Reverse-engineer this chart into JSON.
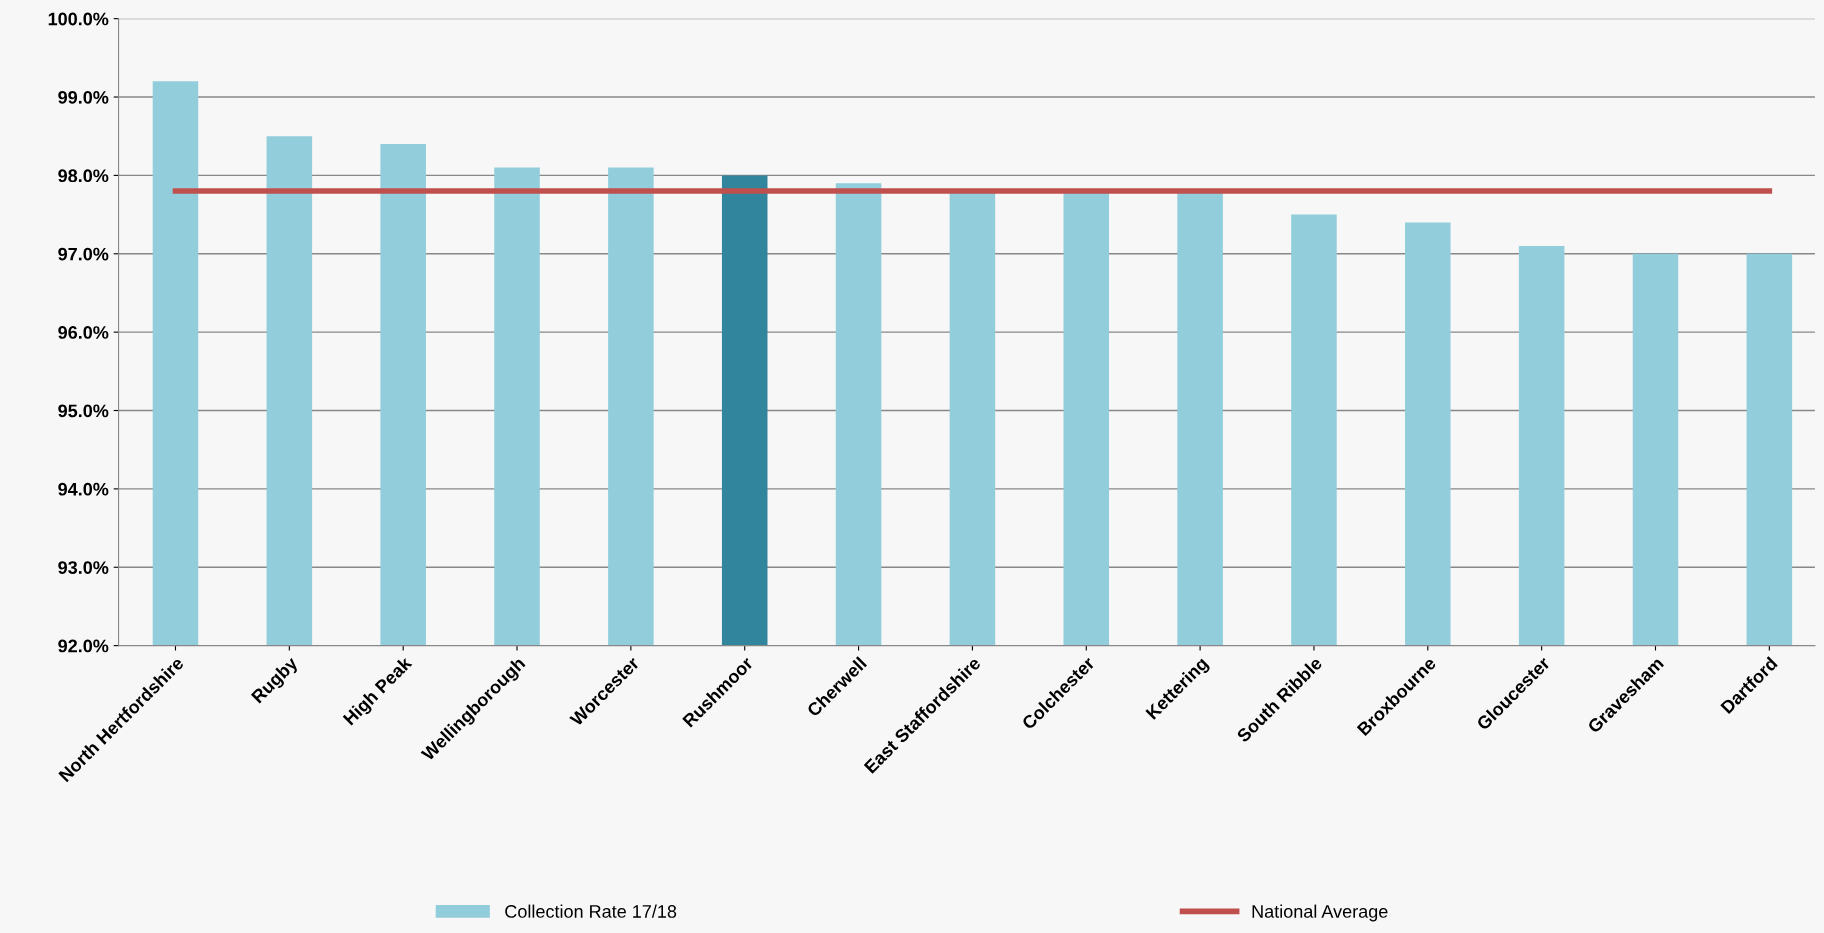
{
  "chart_data": {
    "type": "bar",
    "categories": [
      "North Hertfordshire",
      "Rugby",
      "High Peak",
      "Wellingborough",
      "Worcester",
      "Rushmoor",
      "Cherwell",
      "East Staffordshire",
      "Colchester",
      "Kettering",
      "South Ribble",
      "Broxbourne",
      "Gloucester",
      "Gravesham",
      "Dartford"
    ],
    "series": [
      {
        "name": "Collection Rate 17/18",
        "color": "#92cddc",
        "colors": [
          "#92cddc",
          "#92cddc",
          "#92cddc",
          "#92cddc",
          "#92cddc",
          "#31859c",
          "#92cddc",
          "#92cddc",
          "#92cddc",
          "#92cddc",
          "#92cddc",
          "#92cddc",
          "#92cddc",
          "#92cddc",
          "#92cddc"
        ],
        "values": [
          99.2,
          98.5,
          98.4,
          98.1,
          98.1,
          98.0,
          97.9,
          97.8,
          97.8,
          97.8,
          97.5,
          97.4,
          97.1,
          97.0,
          97.0
        ]
      },
      {
        "name": "National Average",
        "type": "line",
        "color": "#c0504d",
        "values": [
          97.8,
          97.8,
          97.8,
          97.8,
          97.8,
          97.8,
          97.8,
          97.8,
          97.8,
          97.8,
          97.8,
          97.8,
          97.8,
          97.8,
          97.8
        ]
      }
    ],
    "ylim": [
      92,
      100
    ],
    "yticks": [
      {
        "value": 92,
        "label": "92.0%"
      },
      {
        "value": 93,
        "label": "93.0%"
      },
      {
        "value": 94,
        "label": "94.0%"
      },
      {
        "value": 95,
        "label": "95.0%"
      },
      {
        "value": 96,
        "label": "96.0%"
      },
      {
        "value": 97,
        "label": "97.0%"
      },
      {
        "value": 98,
        "label": "98.0%"
      },
      {
        "value": 99,
        "label": "99.0%"
      },
      {
        "value": 100,
        "label": "100.0%"
      }
    ],
    "grid": "y",
    "legend": "bottom"
  }
}
